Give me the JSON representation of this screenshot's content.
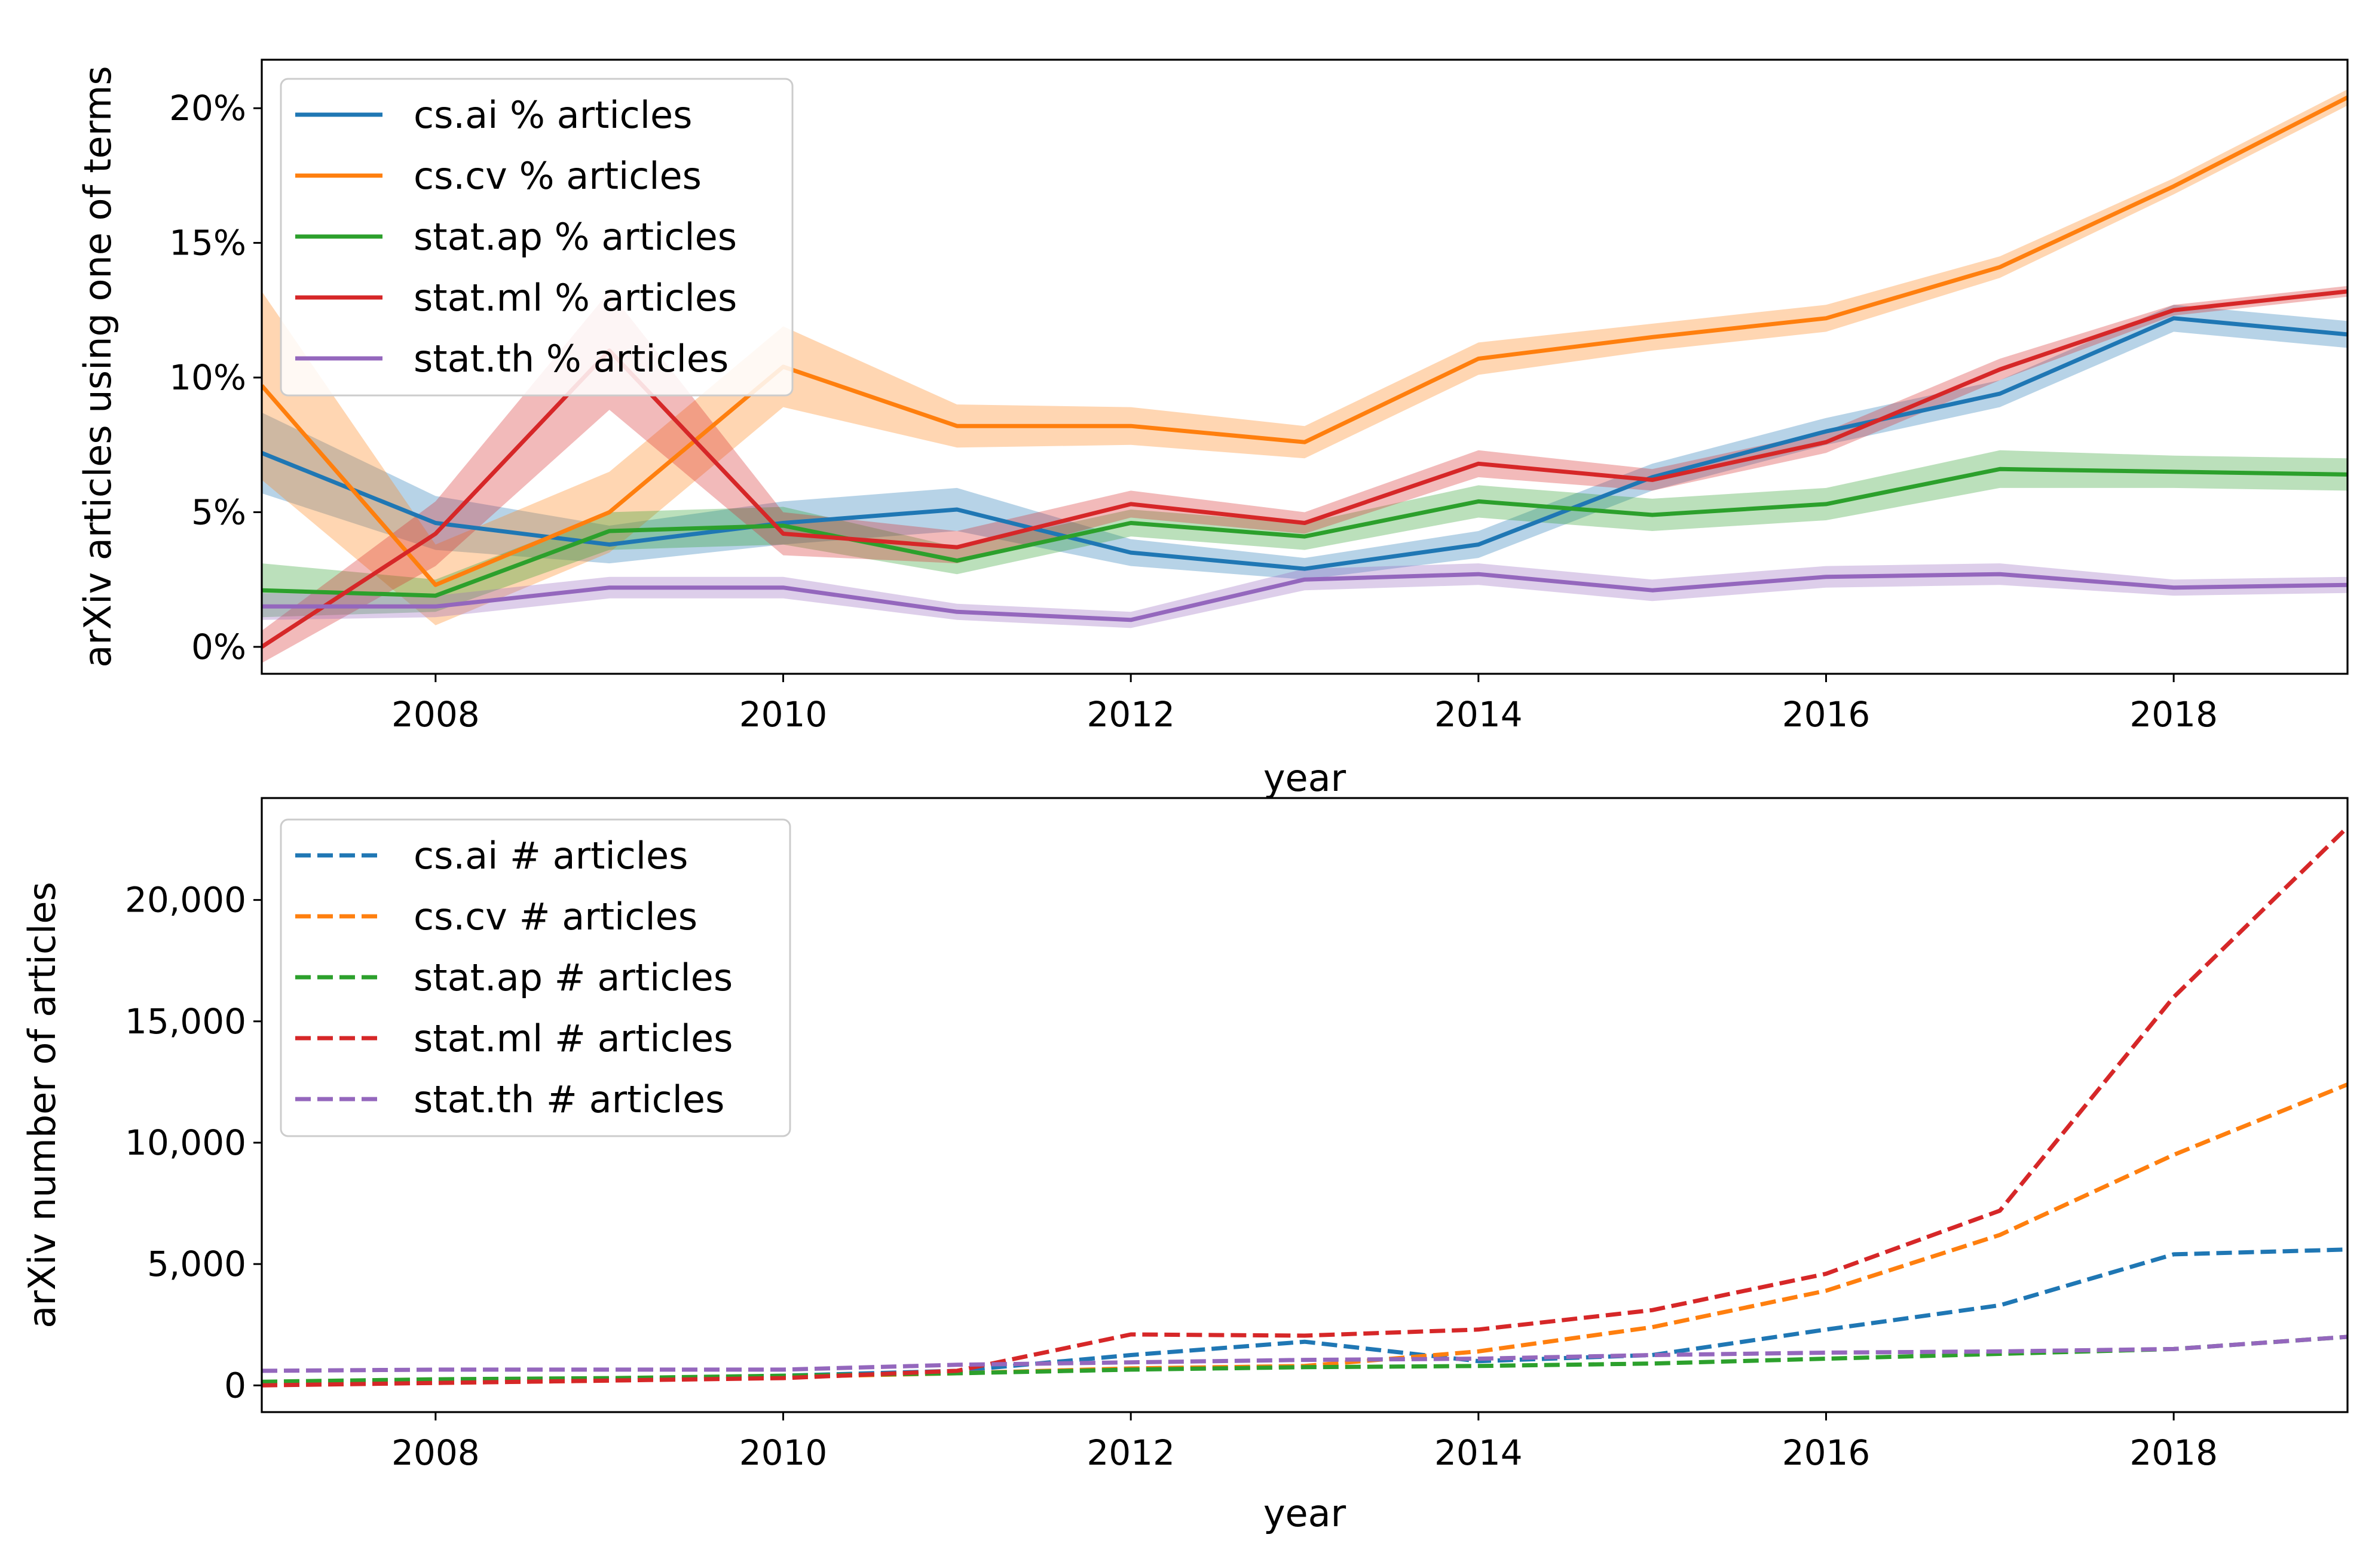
{
  "figure": {
    "background": "#ffffff",
    "palette": {
      "cs.ai": "#1f77b4",
      "cs.cv": "#ff7f0e",
      "stat.ap": "#2ca02c",
      "stat.ml": "#d62728",
      "stat.th": "#9467bd"
    }
  },
  "chart_data": [
    {
      "type": "line",
      "title": "",
      "xlabel": "year",
      "ylabel": "arXiv articles using one of terms",
      "xlim": [
        2007,
        2019
      ],
      "ylim": [
        -1,
        21.8
      ],
      "xticks": [
        2008,
        2010,
        2012,
        2014,
        2016,
        2018
      ],
      "yticks": [
        0,
        5,
        10,
        15,
        20
      ],
      "ytick_labels": [
        "0%",
        "5%",
        "10%",
        "15%",
        "20%"
      ],
      "grid": false,
      "legend_position": "upper left",
      "line_style": "solid",
      "confidence_band": true,
      "x": [
        2007,
        2008,
        2009,
        2010,
        2011,
        2012,
        2013,
        2014,
        2015,
        2016,
        2017,
        2018,
        2019
      ],
      "series": [
        {
          "name": "cs.ai % articles",
          "color": "#1f77b4",
          "values": [
            7.2,
            4.6,
            3.8,
            4.6,
            5.1,
            3.5,
            2.9,
            3.8,
            6.3,
            8.0,
            9.4,
            12.2,
            11.6
          ],
          "band": [
            1.5,
            1.0,
            0.7,
            0.8,
            0.8,
            0.5,
            0.4,
            0.5,
            0.5,
            0.5,
            0.5,
            0.5,
            0.5
          ]
        },
        {
          "name": "cs.cv % articles",
          "color": "#ff7f0e",
          "values": [
            9.7,
            2.3,
            5.0,
            10.4,
            8.2,
            8.2,
            7.6,
            10.7,
            11.5,
            12.2,
            14.1,
            17.1,
            20.4
          ],
          "band": [
            3.5,
            1.5,
            1.5,
            1.5,
            0.8,
            0.7,
            0.6,
            0.6,
            0.5,
            0.5,
            0.4,
            0.3,
            0.3
          ]
        },
        {
          "name": "stat.ap % articles",
          "color": "#2ca02c",
          "values": [
            2.1,
            1.9,
            4.3,
            4.5,
            3.2,
            4.6,
            4.1,
            5.4,
            4.9,
            5.3,
            6.6,
            6.5,
            6.4
          ],
          "band": [
            1.0,
            0.6,
            0.7,
            0.7,
            0.5,
            0.5,
            0.5,
            0.6,
            0.6,
            0.6,
            0.7,
            0.6,
            0.6
          ]
        },
        {
          "name": "stat.ml % articles",
          "color": "#d62728",
          "values": [
            0.0,
            4.2,
            11.0,
            4.2,
            3.7,
            5.3,
            4.6,
            6.8,
            6.2,
            7.6,
            10.3,
            12.5,
            13.2
          ],
          "band": [
            0.6,
            1.2,
            2.2,
            0.8,
            0.6,
            0.5,
            0.4,
            0.5,
            0.4,
            0.4,
            0.4,
            0.2,
            0.2
          ]
        },
        {
          "name": "stat.th % articles",
          "color": "#9467bd",
          "values": [
            1.5,
            1.5,
            2.2,
            2.2,
            1.3,
            1.0,
            2.5,
            2.7,
            2.1,
            2.6,
            2.7,
            2.2,
            2.3
          ],
          "band": [
            0.5,
            0.4,
            0.4,
            0.4,
            0.3,
            0.3,
            0.4,
            0.4,
            0.4,
            0.4,
            0.4,
            0.3,
            0.3
          ]
        }
      ]
    },
    {
      "type": "line",
      "title": "",
      "xlabel": "year",
      "ylabel": "arXiv number of articles",
      "xlim": [
        2007,
        2019
      ],
      "ylim": [
        -1100,
        24200
      ],
      "xticks": [
        2008,
        2010,
        2012,
        2014,
        2016,
        2018
      ],
      "yticks": [
        0,
        5000,
        10000,
        15000,
        20000
      ],
      "ytick_labels": [
        "0",
        "5,000",
        "10,000",
        "15,000",
        "20,000"
      ],
      "grid": false,
      "legend_position": "upper left",
      "line_style": "dashed",
      "x": [
        2007,
        2008,
        2009,
        2010,
        2011,
        2012,
        2013,
        2014,
        2015,
        2016,
        2017,
        2018,
        2019
      ],
      "series": [
        {
          "name": "cs.ai # articles",
          "color": "#1f77b4",
          "values": [
            120,
            180,
            250,
            400,
            600,
            1250,
            1800,
            1000,
            1250,
            2300,
            3300,
            5400,
            5600
          ]
        },
        {
          "name": "cs.cv # articles",
          "color": "#ff7f0e",
          "values": [
            50,
            100,
            200,
            350,
            500,
            700,
            800,
            1400,
            2400,
            3900,
            6200,
            9500,
            12400
          ]
        },
        {
          "name": "stat.ap # articles",
          "color": "#2ca02c",
          "values": [
            150,
            250,
            300,
            400,
            500,
            650,
            750,
            800,
            900,
            1100,
            1300,
            1500,
            2000
          ]
        },
        {
          "name": "stat.ml # articles",
          "color": "#d62728",
          "values": [
            0,
            100,
            200,
            300,
            600,
            2100,
            2050,
            2300,
            3100,
            4600,
            7200,
            16000,
            23000
          ]
        },
        {
          "name": "stat.th # articles",
          "color": "#9467bd",
          "values": [
            600,
            650,
            650,
            650,
            850,
            950,
            1050,
            1100,
            1250,
            1350,
            1400,
            1500,
            2000
          ]
        }
      ]
    }
  ]
}
